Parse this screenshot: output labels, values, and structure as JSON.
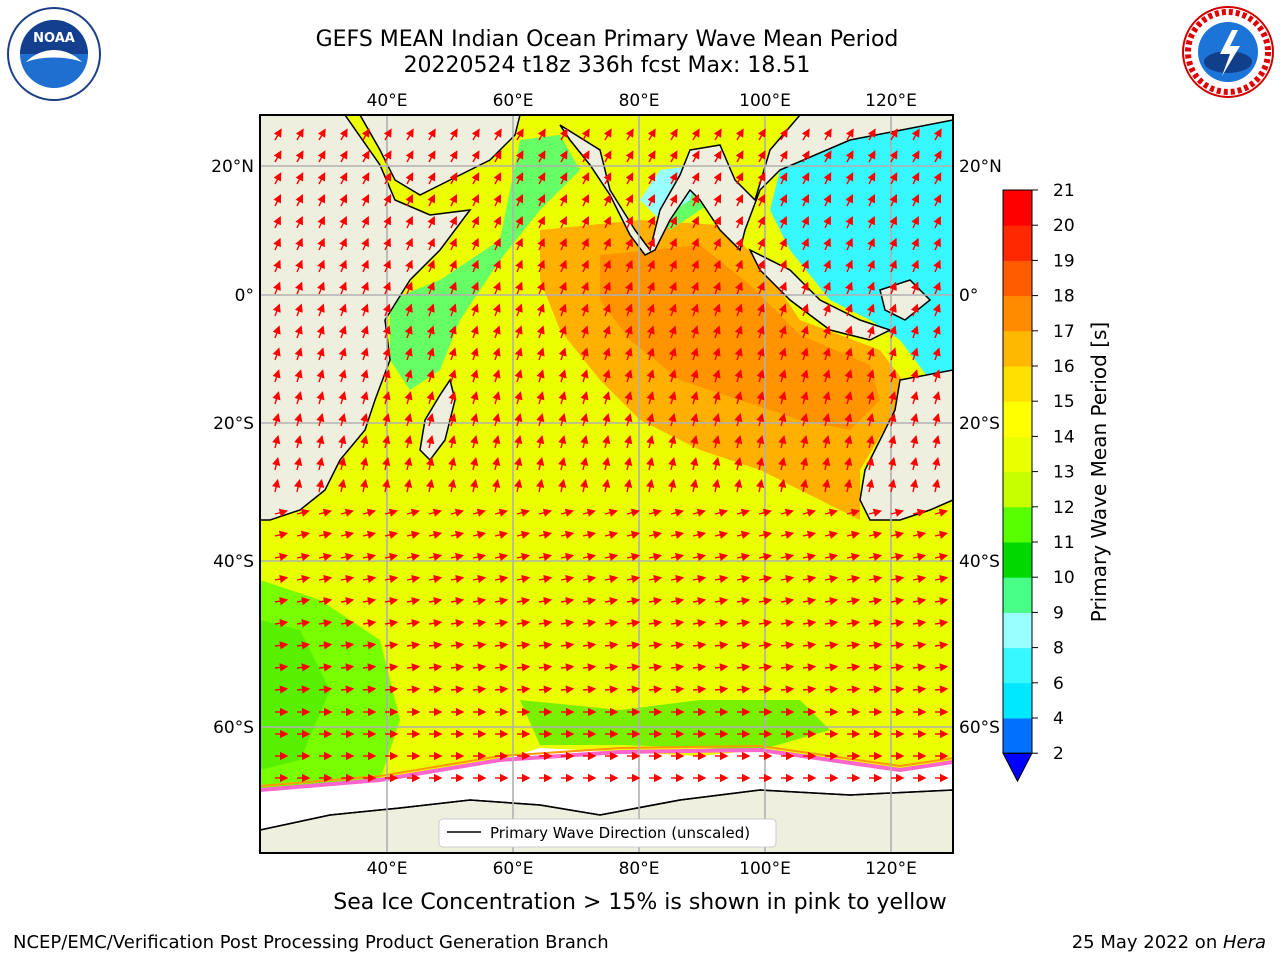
{
  "header": {
    "title_line1": "GEFS MEAN Indian Ocean Primary Wave Mean Period",
    "title_line2": "20220524 t18z 336h fcst   Max: 18.51"
  },
  "logos": {
    "left": "NOAA",
    "right": "National Weather Service"
  },
  "map": {
    "projection": "plate-carree",
    "lon_range": [
      20,
      130
    ],
    "lat_range": [
      -73,
      24
    ],
    "lon_ticks": [
      "40°E",
      "60°E",
      "80°E",
      "100°E",
      "120°E"
    ],
    "lat_ticks": [
      "20°N",
      "0°",
      "20°S",
      "40°S",
      "60°S"
    ],
    "grid": true,
    "legend": {
      "entry": "Primary Wave Direction (unscaled)",
      "placement": "bottom-center"
    },
    "arrow_color": "#ff0000",
    "land_color": "#efefdf",
    "ice_color": "#ffffff"
  },
  "colorbar": {
    "label": "Primary Wave Mean Period [s]",
    "ticks": [
      "2",
      "4",
      "6",
      "8",
      "9",
      "10",
      "11",
      "12",
      "13",
      "14",
      "15",
      "16",
      "17",
      "18",
      "19",
      "20",
      "21"
    ],
    "colors": [
      "#0070ff",
      "#00e8ff",
      "#38f8ff",
      "#99ffff",
      "#48ff88",
      "#00d800",
      "#58ff00",
      "#c8ff00",
      "#eaff00",
      "#ffff00",
      "#ffe000",
      "#ffb800",
      "#ff8c00",
      "#ff5c00",
      "#ff2800",
      "#ff0000"
    ],
    "under_color": "#0000ff"
  },
  "caption": "Sea Ice Concentration > 15% is shown in pink to yellow",
  "footer": {
    "left": "NCEP/EMC/Verification Post Processing Product Generation Branch",
    "right_prefix": "25 May 2022 on ",
    "right_host": "Hera"
  }
}
